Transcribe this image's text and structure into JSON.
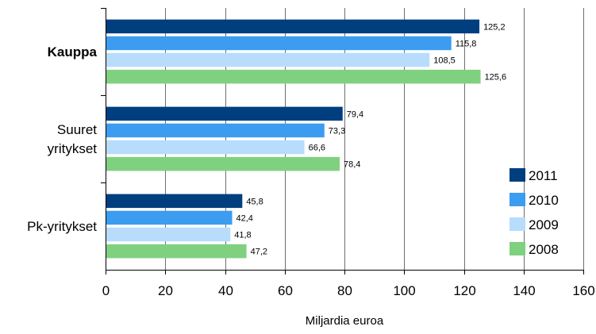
{
  "chart_data": {
    "type": "bar",
    "orientation": "horizontal",
    "categories": [
      "Kauppa",
      "Suuret\nyritykset",
      "Pk-yritykset"
    ],
    "category_bold": [
      true,
      false,
      false
    ],
    "series": [
      {
        "name": "2011",
        "color": "#003f7f",
        "values": [
          125.2,
          79.4,
          45.8
        ]
      },
      {
        "name": "2010",
        "color": "#3b9cf0",
        "values": [
          115.8,
          73.3,
          42.4
        ]
      },
      {
        "name": "2009",
        "color": "#b8dcfb",
        "values": [
          108.5,
          66.6,
          41.8
        ]
      },
      {
        "name": "2008",
        "color": "#7fd17f",
        "values": [
          125.6,
          78.4,
          47.2
        ]
      }
    ],
    "data_labels": [
      [
        "125,2",
        "79,4",
        "45,8"
      ],
      [
        "115,8",
        "73,3",
        "42,4"
      ],
      [
        "108,5",
        "66,6",
        "41,8"
      ],
      [
        "125,6",
        "78,4",
        "47,2"
      ]
    ],
    "xlim": [
      0,
      160
    ],
    "xticks": [
      0,
      20,
      40,
      60,
      80,
      100,
      120,
      140,
      160
    ],
    "xtick_labels": [
      "0",
      "20",
      "40",
      "60",
      "80",
      "100",
      "120",
      "140",
      "160"
    ],
    "xlabel": "Miljardia euroa",
    "legend_position": "right",
    "grid": true
  }
}
